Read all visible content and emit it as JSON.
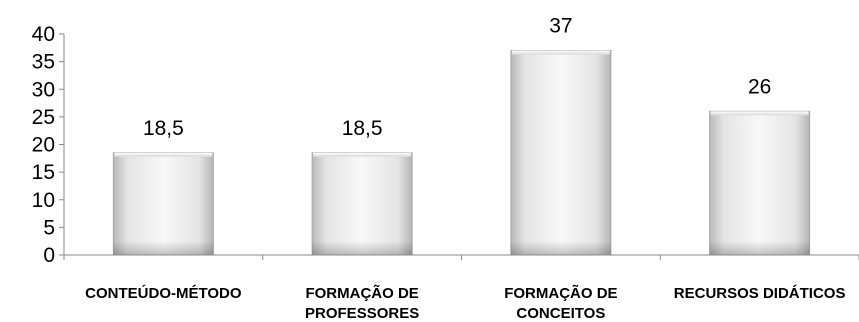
{
  "chart_data": {
    "type": "bar",
    "categories": [
      [
        "CONTEÚDO-MÉTODO"
      ],
      [
        "FORMAÇÃO DE",
        "PROFESSORES"
      ],
      [
        "FORMAÇÃO DE",
        "CONCEITOS"
      ],
      [
        "RECURSOS DIDÁTICOS"
      ]
    ],
    "values": [
      18.5,
      18.5,
      37,
      26
    ],
    "data_labels": [
      "18,5",
      "18,5",
      "37",
      "26"
    ],
    "title": "",
    "xlabel": "",
    "ylabel": "",
    "ylim": [
      0,
      40
    ],
    "yticks": [
      0,
      5,
      10,
      15,
      20,
      25,
      30,
      35,
      40
    ],
    "grid": false,
    "legend": "none"
  }
}
